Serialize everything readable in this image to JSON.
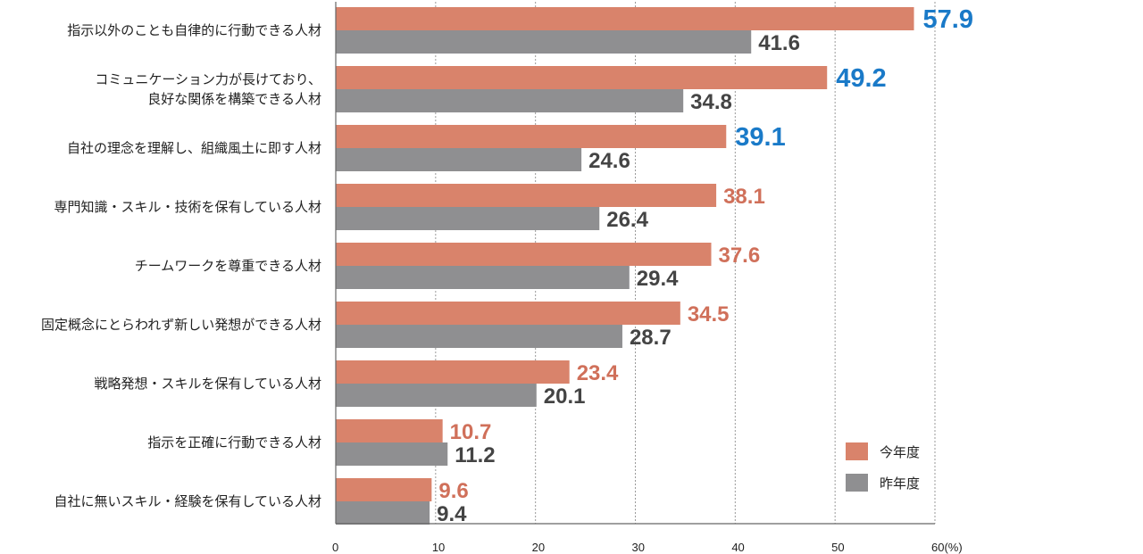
{
  "chart_data": {
    "type": "bar",
    "orientation": "horizontal",
    "title": "",
    "xlabel": "",
    "ylabel": "",
    "unit": "(%)",
    "xlim": [
      0,
      60
    ],
    "xticks": [
      "0",
      "10",
      "20",
      "30",
      "40",
      "50",
      "60(%)"
    ],
    "grid": "vertical dotted",
    "legend_position": "bottom-right",
    "categories": [
      [
        "指示以外のことも自律的に行動できる人材"
      ],
      [
        "コミュニケーション力が長けており、",
        "良好な関係を構築できる人材"
      ],
      [
        "自社の理念を理解し、組織風土に即す人材"
      ],
      [
        "専門知識・スキル・技術を保有している人材"
      ],
      [
        "チームワークを尊重できる人材"
      ],
      [
        "固定概念にとらわれず新しい発想ができる人材"
      ],
      [
        "戦略発想・スキルを保有している人材"
      ],
      [
        "指示を正確に行動できる人材"
      ],
      [
        "自社に無いスキル・経験を保有している人材"
      ]
    ],
    "series": [
      {
        "name": "今年度",
        "color": "#d9836b",
        "values": [
          57.9,
          49.2,
          39.1,
          38.1,
          37.6,
          34.5,
          23.4,
          10.7,
          9.6
        ],
        "label_colors": [
          "#1a7ac8",
          "#1a7ac8",
          "#1a7ac8",
          "#d0705a",
          "#d0705a",
          "#d0705a",
          "#d0705a",
          "#d0705a",
          "#d0705a"
        ]
      },
      {
        "name": "昨年度",
        "color": "#8f8f91",
        "values": [
          41.6,
          34.8,
          24.6,
          26.4,
          29.4,
          28.7,
          20.1,
          11.2,
          9.4
        ],
        "label_color": "#444444"
      }
    ]
  }
}
